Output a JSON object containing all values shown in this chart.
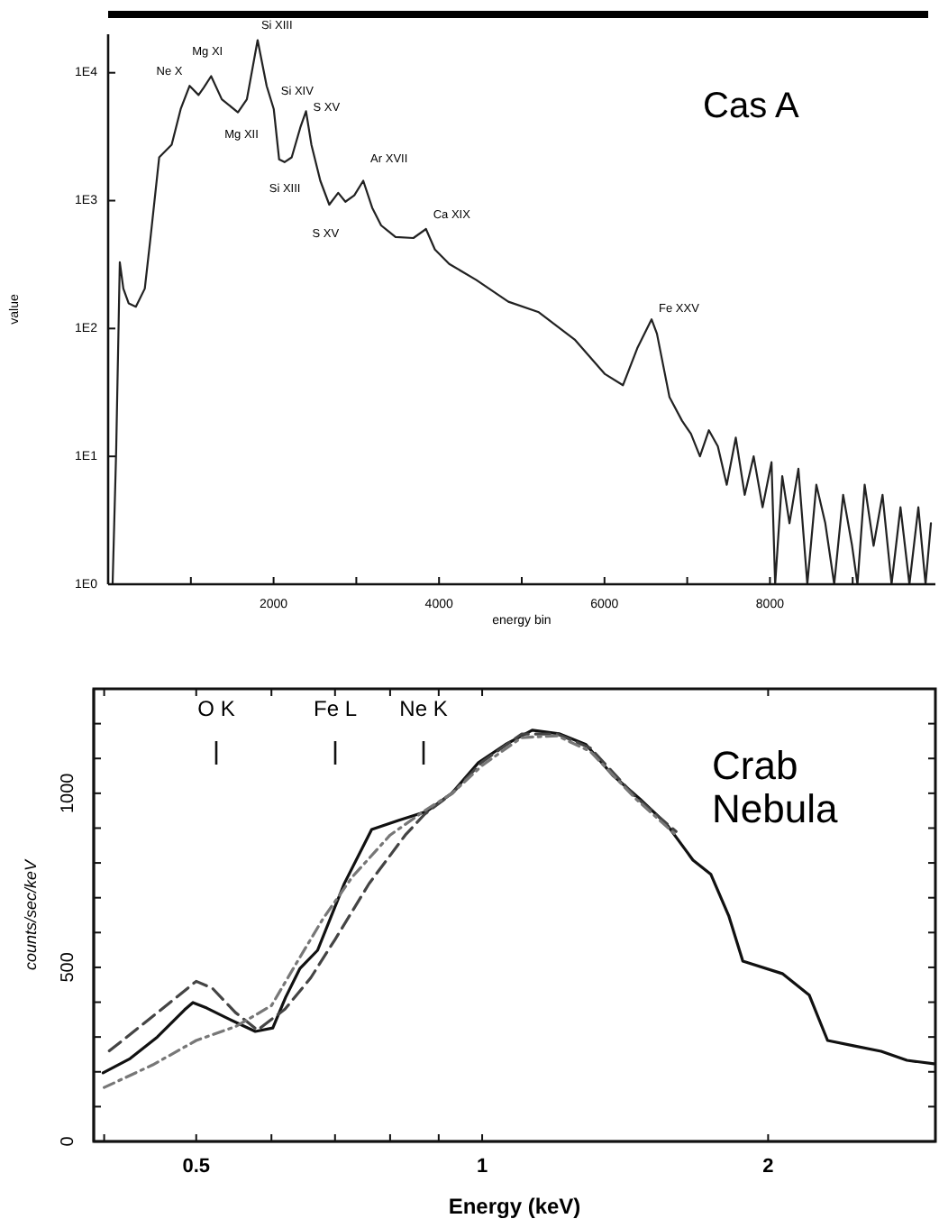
{
  "chart_data": [
    {
      "type": "line",
      "title": "Cas A",
      "xlabel": "energy bin",
      "ylabel": "value",
      "log": "y",
      "grid": false,
      "xlim": [
        0,
        10000
      ],
      "ylim": [
        1,
        20000
      ],
      "xticks": [
        {
          "value": 1000,
          "label": null
        },
        2000,
        {
          "value": 3000,
          "label": null
        },
        4000,
        {
          "value": 5000,
          "label": null
        },
        6000,
        {
          "value": 7000,
          "label": null
        },
        8000,
        {
          "value": 9000,
          "label": null
        }
      ],
      "yticks": [
        {
          "value": 1,
          "label": "1E0"
        },
        {
          "value": 10,
          "label": "1E1"
        },
        {
          "value": 100,
          "label": "1E2"
        },
        {
          "value": 1000,
          "label": "1E3"
        },
        {
          "value": 10000,
          "label": "1E4"
        }
      ],
      "series": [
        {
          "color": "#222222",
          "line_style": "solid",
          "x": [
            54,
            97,
            141,
            184,
            249,
            335,
            443,
            509,
            617,
            768,
            877,
            985,
            1093,
            1158,
            1245,
            1374,
            1569,
            1677,
            1807,
            1916,
            2002,
            2067,
            2132,
            2219,
            2327,
            2392,
            2457,
            2565,
            2673,
            2781,
            2868,
            2976,
            3084,
            3192,
            3300,
            3474,
            3690,
            3842,
            3950,
            4123,
            4448,
            4838,
            5206,
            5639,
            6006,
            6223,
            6396,
            6569,
            6634,
            6786,
            6937,
            7045,
            7154,
            7262,
            7370,
            7478,
            7587,
            7695,
            7803,
            7911,
            8019,
            8063,
            8149,
            8236,
            8344,
            8452,
            8561,
            8669,
            8777,
            8885,
            8993,
            9058,
            9145,
            9253,
            9361,
            9470,
            9578,
            9686,
            9794,
            9881,
            9946
          ],
          "values": [
            1,
            11,
            330,
            205,
            157,
            148,
            205,
            490,
            2180,
            2740,
            5200,
            7900,
            6700,
            7700,
            9400,
            6200,
            4900,
            6200,
            18000,
            7900,
            5200,
            2100,
            2000,
            2180,
            3800,
            5000,
            2740,
            1430,
            930,
            1150,
            980,
            1100,
            1430,
            880,
            640,
            520,
            510,
            600,
            415,
            320,
            240,
            162,
            134,
            82,
            44,
            36,
            70,
            118,
            91,
            29,
            19,
            15,
            10,
            16,
            12,
            6,
            14,
            5,
            10,
            4,
            9,
            1,
            7,
            3,
            8,
            1,
            6,
            3,
            1,
            5,
            2,
            1,
            6,
            2,
            5,
            1,
            4,
            1,
            4,
            1,
            3
          ]
        }
      ],
      "annotations": [
        {
          "text": "Ne X",
          "x": 985,
          "y": 7900
        },
        {
          "text": "Mg XI",
          "x": 1245,
          "y": 9400
        },
        {
          "text": "Mg XII",
          "x": 1569,
          "y": 4900
        },
        {
          "text": "Si XIII",
          "x": 1807,
          "y": 18000
        },
        {
          "text": "Si XIV",
          "x": 2002,
          "y": 5200
        },
        {
          "text": "Si XIII",
          "x": 2180,
          "y": 2100
        },
        {
          "text": "S XV",
          "x": 2392,
          "y": 5000
        },
        {
          "text": "S XV",
          "x": 2673,
          "y": 930
        },
        {
          "text": "Ar XVII",
          "x": 3084,
          "y": 1430
        },
        {
          "text": "Ca XIX",
          "x": 3842,
          "y": 600
        },
        {
          "text": "Fe XXV",
          "x": 6569,
          "y": 118
        }
      ]
    },
    {
      "type": "line",
      "title": "Crab Nebula",
      "xlabel": "Energy (keV)",
      "ylabel": "counts/sec/keV",
      "log": "x",
      "grid": false,
      "xlim": [
        0.39,
        3.0
      ],
      "ylim": [
        0,
        1300
      ],
      "xticks": [
        {
          "value": 0.4,
          "label": null
        },
        0.5,
        {
          "value": 0.6,
          "label": null
        },
        {
          "value": 0.7,
          "label": null
        },
        {
          "value": 0.8,
          "label": null
        },
        {
          "value": 0.9,
          "label": null
        },
        1,
        2,
        {
          "value": 3,
          "label": null
        }
      ],
      "yticks": [
        0,
        {
          "value": 100,
          "label": null
        },
        {
          "value": 200,
          "label": null
        },
        {
          "value": 300,
          "label": null
        },
        {
          "value": 400,
          "label": null
        },
        500,
        {
          "value": 600,
          "label": null
        },
        {
          "value": 700,
          "label": null
        },
        {
          "value": 800,
          "label": null
        },
        {
          "value": 900,
          "label": null
        },
        1000,
        {
          "value": 1100,
          "label": null
        },
        {
          "value": 1200,
          "label": null
        }
      ],
      "series": [
        {
          "color": "#111111",
          "line_style": "solid",
          "x": [
            0.399,
            0.426,
            0.455,
            0.486,
            0.496,
            0.513,
            0.541,
            0.577,
            0.602,
            0.621,
            0.643,
            0.671,
            0.716,
            0.765,
            0.816,
            0.874,
            0.929,
            0.991,
            1.058,
            1.129,
            1.205,
            1.286,
            1.372,
            1.465,
            1.563,
            1.667,
            1.741,
            1.818,
            1.881,
            2.07,
            2.21,
            2.31,
            2.46,
            2.63,
            2.8,
            2.99
          ],
          "values": [
            197,
            238,
            300,
            378,
            399,
            383,
            352,
            316,
            326,
            414,
            497,
            549,
            741,
            896,
            922,
            948,
            1000,
            1088,
            1140,
            1181,
            1171,
            1140,
            1052,
            984,
            912,
            808,
            767,
            648,
            518,
            482,
            420,
            290,
            275,
            259,
            233,
            223
          ]
        },
        {
          "color": "#444444",
          "line_style": "dashed",
          "x": [
            0.405,
            0.46,
            0.5,
            0.52,
            0.55,
            0.58,
            0.62,
            0.66,
            0.7,
            0.76,
            0.83,
            0.87,
            0.93,
            1.0,
            1.1,
            1.2,
            1.3,
            1.45,
            1.6
          ],
          "values": [
            260,
            380,
            460,
            440,
            370,
            320,
            380,
            470,
            580,
            740,
            880,
            940,
            1000,
            1090,
            1170,
            1170,
            1130,
            990,
            890
          ]
        },
        {
          "color": "#777777",
          "line_style": "dotted",
          "x": [
            0.4,
            0.45,
            0.5,
            0.55,
            0.6,
            0.64,
            0.68,
            0.73,
            0.8,
            0.87,
            0.93,
            1.0,
            1.1,
            1.2,
            1.3,
            1.45,
            1.6
          ],
          "values": [
            155,
            220,
            290,
            330,
            390,
            520,
            640,
            760,
            880,
            950,
            1000,
            1080,
            1160,
            1165,
            1120,
            985,
            880
          ]
        }
      ],
      "annotations": [
        "O K",
        "Fe L",
        "Ne K"
      ]
    }
  ]
}
